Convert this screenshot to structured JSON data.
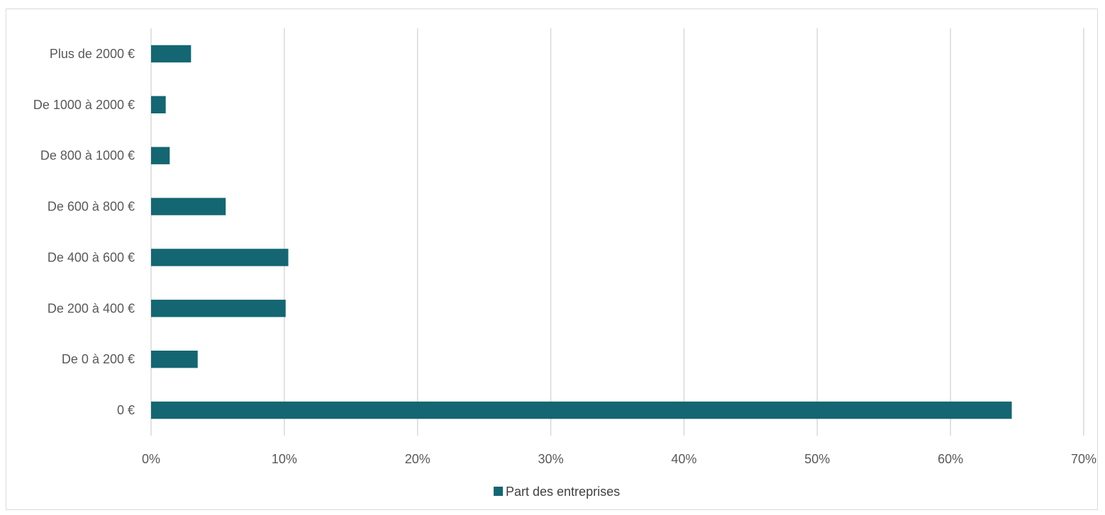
{
  "chart_data": {
    "type": "bar",
    "orientation": "horizontal",
    "categories": [
      "0 €",
      "De 0 à 200 €",
      "De 200 à 400 €",
      "De 400 à 600 €",
      "De 600 à 800 €",
      "De 800 à 1000 €",
      "De 1000 à 2000 €",
      "Plus de 2000 €"
    ],
    "series": [
      {
        "name": "Part des entreprises",
        "color": "#136672",
        "values": [
          64.6,
          3.5,
          10.1,
          10.3,
          5.6,
          1.4,
          1.1,
          3.0
        ]
      }
    ],
    "xlim": [
      0,
      70
    ],
    "xticks": [
      0,
      10,
      20,
      30,
      40,
      50,
      60,
      70
    ],
    "xtick_labels": [
      "0%",
      "10%",
      "20%",
      "30%",
      "40%",
      "50%",
      "60%",
      "70%"
    ],
    "grid": "vertical",
    "legend_position": "bottom"
  },
  "legend": {
    "label": "Part des entreprises"
  }
}
